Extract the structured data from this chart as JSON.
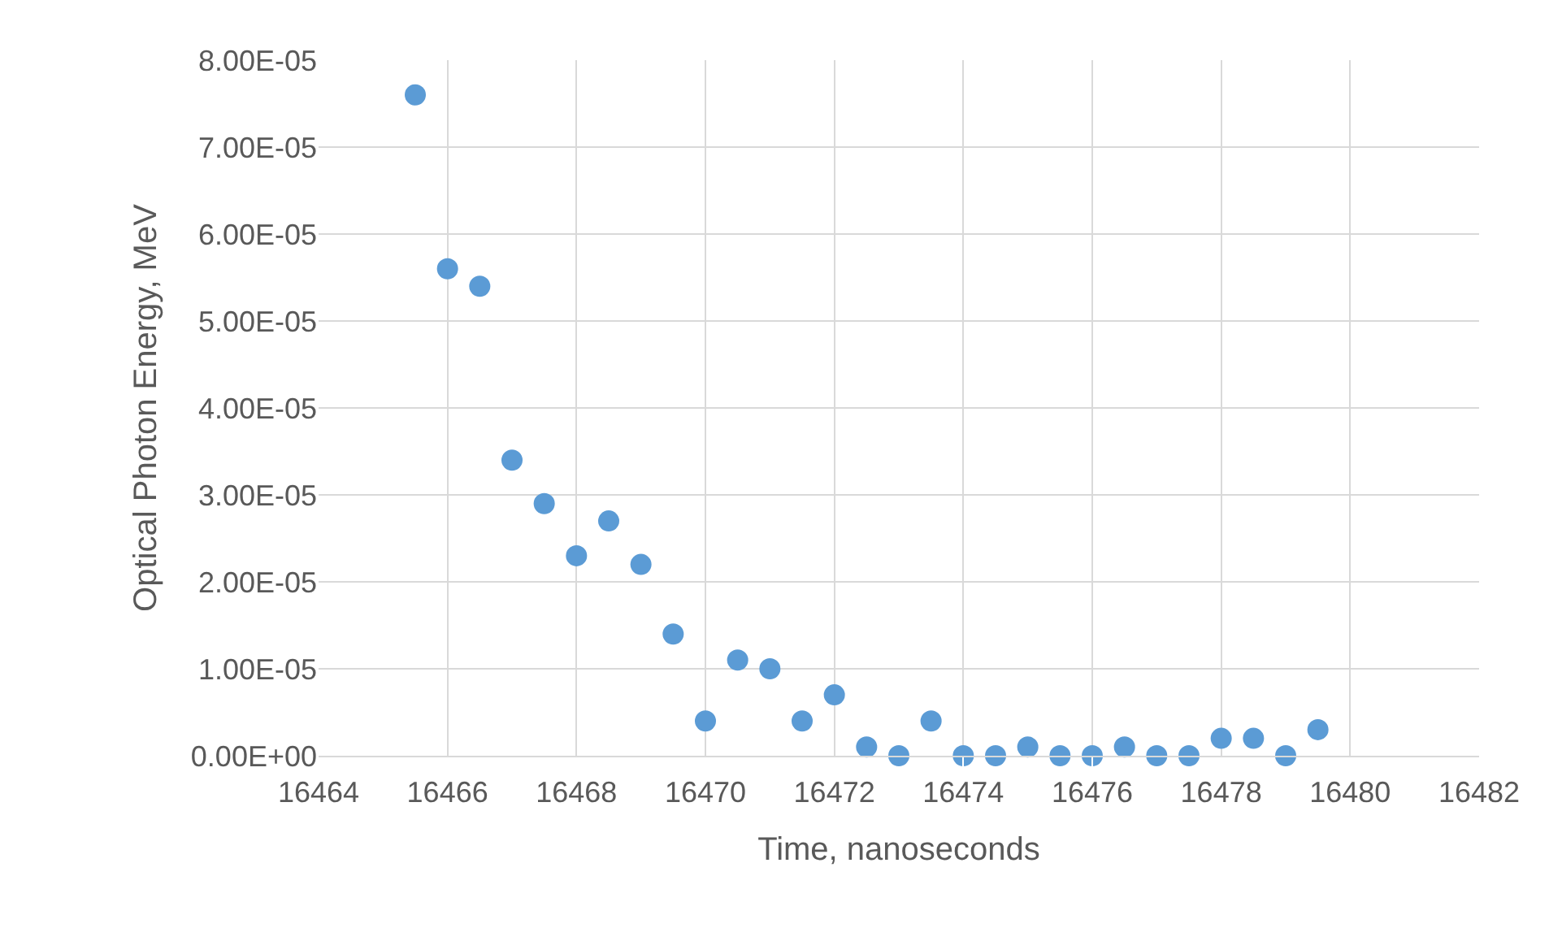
{
  "chart_data": {
    "type": "scatter",
    "xlabel": "Time, nanoseconds",
    "ylabel": "Optical Photon Energy, MeV",
    "x": [
      16465.5,
      16466,
      16466.5,
      16467,
      16467.5,
      16468,
      16468.5,
      16469,
      16469.5,
      16470,
      16470.5,
      16471,
      16471.5,
      16472,
      16472.5,
      16473,
      16473.5,
      16474,
      16474.5,
      16475,
      16475.5,
      16476,
      16476.5,
      16477,
      16477.5,
      16478,
      16478.5,
      16479,
      16479.5
    ],
    "series": [
      {
        "color": "#5b9bd5",
        "values": [
          7.6e-05,
          5.6e-05,
          5.4e-05,
          3.4e-05,
          2.9e-05,
          2.3e-05,
          2.7e-05,
          2.2e-05,
          1.4e-05,
          4e-06,
          1.1e-05,
          1e-05,
          4e-06,
          7e-06,
          1e-06,
          0,
          4e-06,
          0,
          0,
          1e-06,
          0,
          0,
          1e-06,
          0,
          0,
          2e-06,
          2e-06,
          0,
          3e-06
        ]
      }
    ],
    "xlim": [
      16464,
      16482
    ],
    "xticks": [
      16464,
      16466,
      16468,
      16470,
      16472,
      16474,
      16476,
      16478,
      16480,
      16482
    ],
    "ylim": [
      0,
      8e-05
    ],
    "yticks": [
      {
        "value": 0,
        "label": "0.00E+00"
      },
      {
        "value": 1e-05,
        "label": "1.00E-05"
      },
      {
        "value": 2e-05,
        "label": "2.00E-05"
      },
      {
        "value": 3e-05,
        "label": "3.00E-05"
      },
      {
        "value": 4e-05,
        "label": "4.00E-05"
      },
      {
        "value": 5e-05,
        "label": "5.00E-05"
      },
      {
        "value": 6e-05,
        "label": "6.00E-05"
      },
      {
        "value": 7e-05,
        "label": "7.00E-05"
      },
      {
        "value": 8e-05,
        "label": "8.00E-05"
      }
    ],
    "grid": true,
    "marker": "circle"
  }
}
